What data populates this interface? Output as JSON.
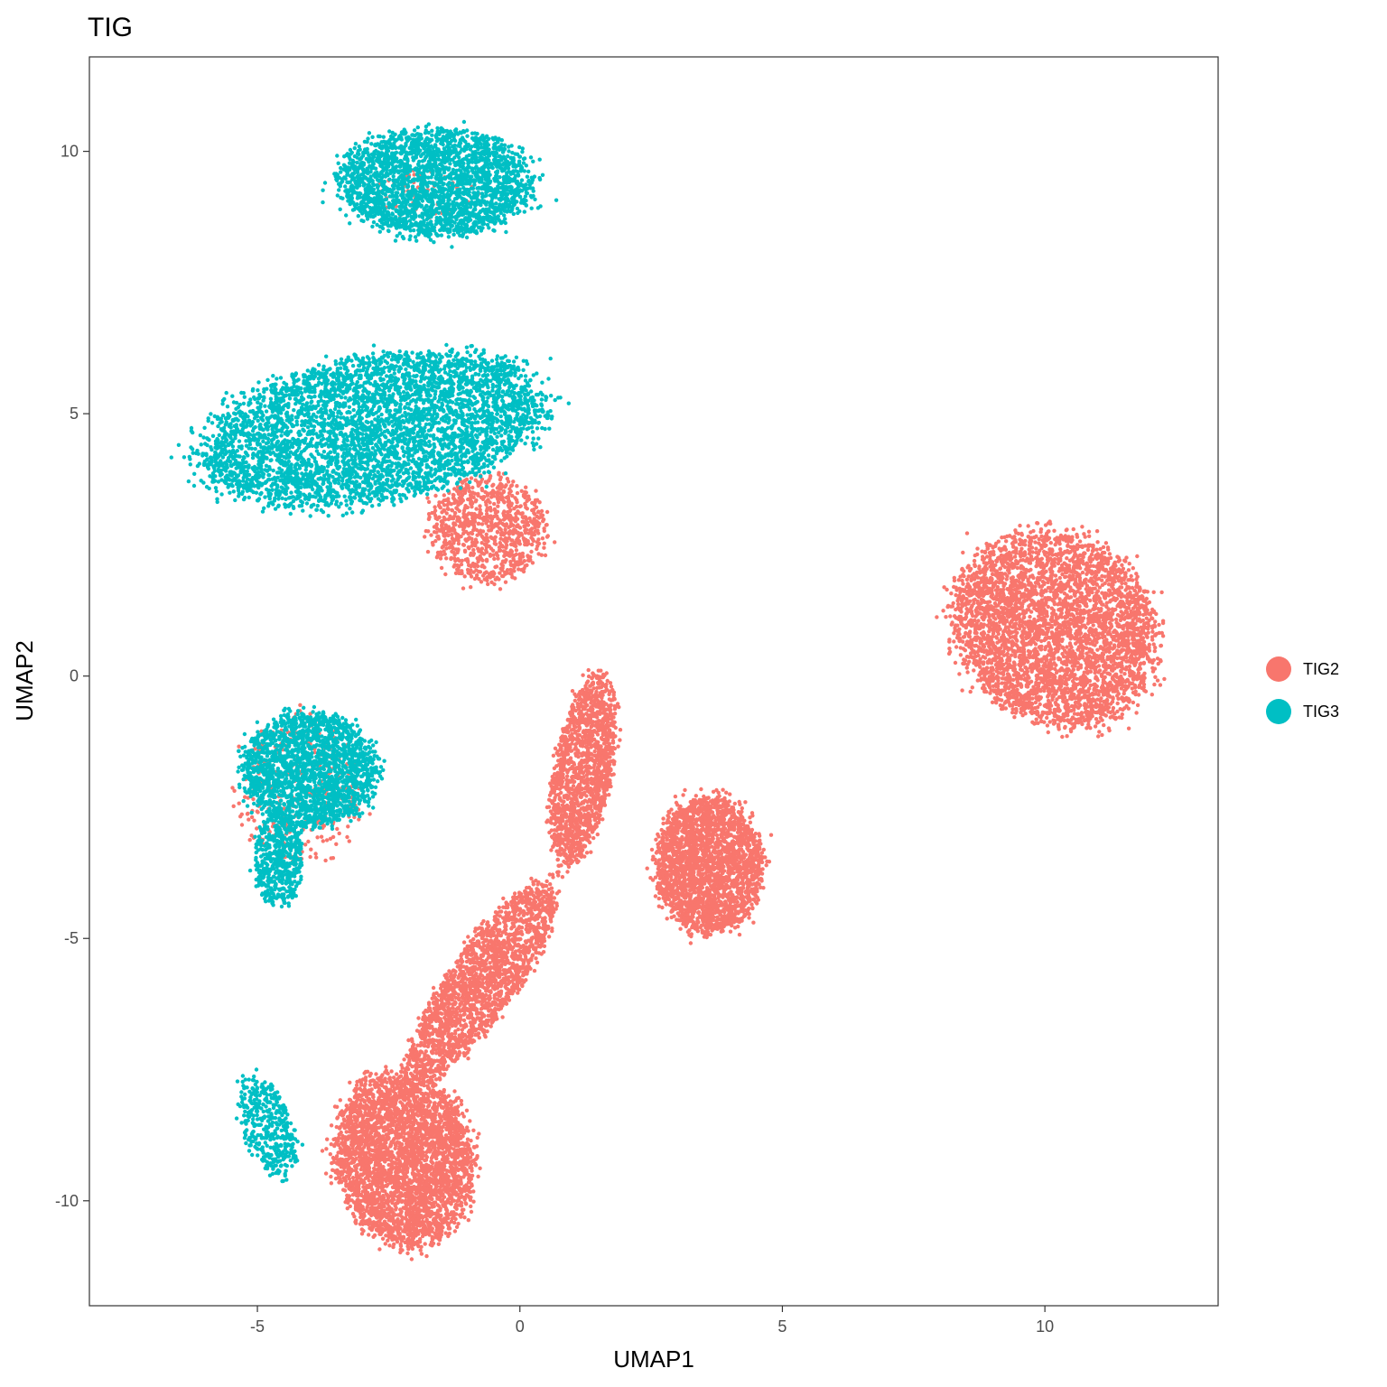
{
  "chart_data": {
    "type": "scatter",
    "title": "TIG",
    "xlabel": "UMAP1",
    "ylabel": "UMAP2",
    "xlim": [
      -8.2,
      13.3
    ],
    "ylim": [
      -12.0,
      11.8
    ],
    "xticks": [
      -5,
      0,
      5,
      10
    ],
    "yticks": [
      -10,
      -5,
      0,
      5,
      10
    ],
    "xtick_labels": [
      "-5",
      "0",
      "5",
      "10"
    ],
    "ytick_labels": [
      "-10",
      "-5",
      "0",
      "5",
      "10"
    ],
    "grid": false,
    "legend_position": "right",
    "series": [
      {
        "name": "TIG2",
        "color": "#F8766D",
        "clusters": [
          {
            "cx": 10.2,
            "cy": 0.9,
            "rx": 2.2,
            "ry": 1.9,
            "angle": -35,
            "n": 4000
          },
          {
            "cx": 3.6,
            "cy": -3.6,
            "rx": 1.1,
            "ry": 1.4,
            "angle": 0,
            "n": 2500
          },
          {
            "cx": -2.2,
            "cy": -9.2,
            "rx": 1.4,
            "ry": 1.8,
            "angle": 10,
            "n": 3500
          },
          {
            "cx": -0.7,
            "cy": -5.8,
            "rx": 0.7,
            "ry": 2.5,
            "angle": -35,
            "n": 2000
          },
          {
            "cx": 1.2,
            "cy": -1.8,
            "rx": 0.6,
            "ry": 2.0,
            "angle": -10,
            "n": 1500
          },
          {
            "cx": -0.6,
            "cy": 2.8,
            "rx": 1.2,
            "ry": 1.1,
            "angle": 0,
            "n": 900
          },
          {
            "cx": -4.2,
            "cy": -2.2,
            "rx": 1.3,
            "ry": 1.5,
            "angle": 0,
            "n": 300
          },
          {
            "cx": -1.8,
            "cy": 9.2,
            "rx": 1.1,
            "ry": 0.5,
            "angle": 0,
            "n": 60
          }
        ]
      },
      {
        "name": "TIG3",
        "color": "#00BFC4",
        "clusters": [
          {
            "cx": -1.6,
            "cy": 9.4,
            "rx": 2.0,
            "ry": 1.1,
            "angle": 0,
            "n": 2500
          },
          {
            "cx": -2.8,
            "cy": 4.7,
            "rx": 3.6,
            "ry": 1.5,
            "angle": 10,
            "n": 4500
          },
          {
            "cx": -4.0,
            "cy": -1.8,
            "rx": 1.4,
            "ry": 1.2,
            "angle": 0,
            "n": 2000
          },
          {
            "cx": -4.6,
            "cy": -3.5,
            "rx": 0.5,
            "ry": 1.0,
            "angle": 0,
            "n": 500
          },
          {
            "cx": -4.8,
            "cy": -8.6,
            "rx": 0.5,
            "ry": 1.1,
            "angle": 20,
            "n": 400
          }
        ]
      }
    ]
  }
}
